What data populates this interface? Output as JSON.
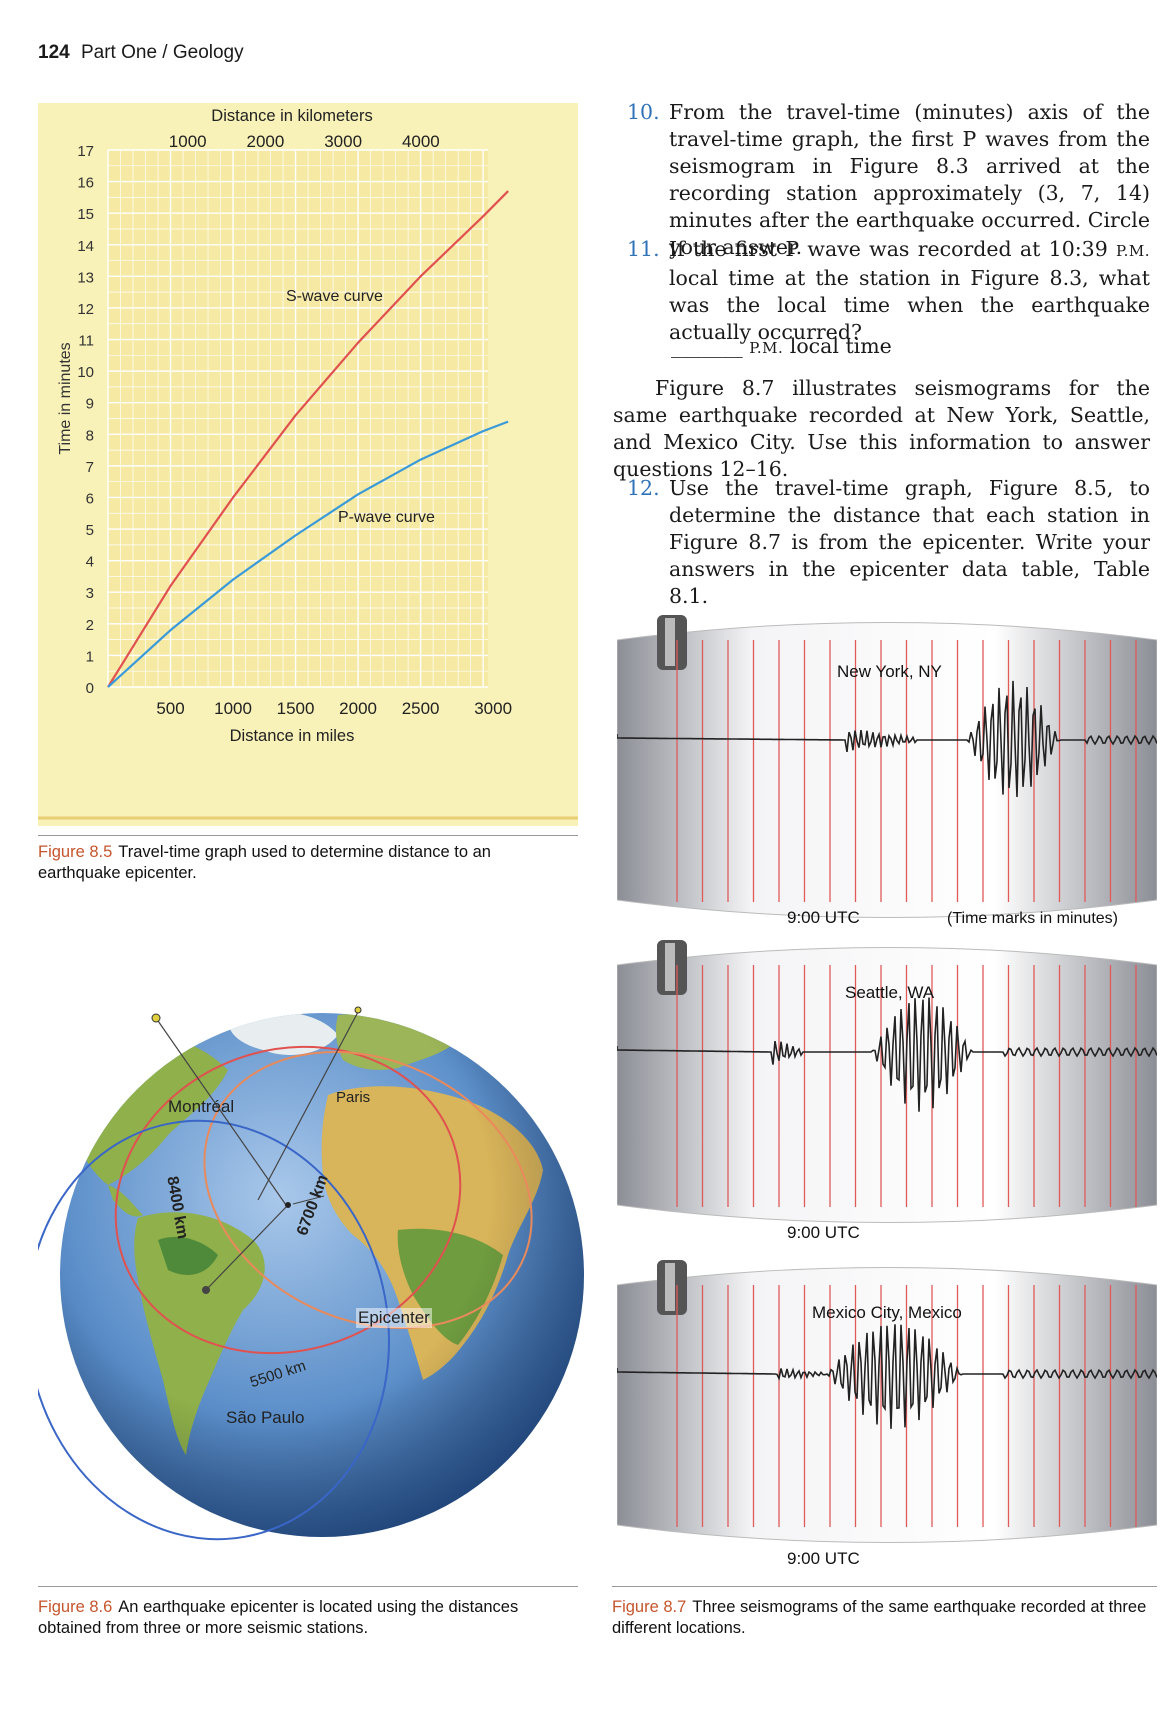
{
  "header": {
    "page_number": "124",
    "section": "Part One / Geology"
  },
  "fig85": {
    "caption_label": "Figure 8.5",
    "caption_text": "Travel-time graph used to determine distance to an earthquake epicenter.",
    "top_axis_label": "Distance in kilometers",
    "bottom_axis_label": "Distance in miles",
    "left_axis_label": "Time in minutes",
    "s_curve_label": "S-wave curve",
    "p_curve_label": "P-wave curve",
    "colors": {
      "background": "#f8f1b8",
      "grid": "#ffffff",
      "s_wave": "#e0514f",
      "p_wave": "#3a9ad9"
    }
  },
  "chart_data": {
    "type": "line",
    "title": "",
    "xlabel": "Distance in miles",
    "x2label": "Distance in kilometers",
    "ylabel": "Time in minutes",
    "xlim": [
      0,
      3200
    ],
    "ylim": [
      0,
      17
    ],
    "x_ticks": [
      "500",
      "1000",
      "1500",
      "2000",
      "2500",
      "3000"
    ],
    "x2_ticks": [
      "1000",
      "2000",
      "3000",
      "4000"
    ],
    "y_ticks": [
      "0",
      "1",
      "2",
      "3",
      "4",
      "5",
      "6",
      "7",
      "8",
      "9",
      "10",
      "11",
      "12",
      "13",
      "14",
      "15",
      "16",
      "17"
    ],
    "grid": true,
    "series": [
      {
        "name": "S-wave curve",
        "x": [
          0,
          500,
          1000,
          1500,
          2000,
          2500,
          3000,
          3200
        ],
        "y": [
          0,
          3.2,
          6.0,
          8.6,
          10.9,
          13.0,
          14.9,
          15.7
        ]
      },
      {
        "name": "P-wave curve",
        "x": [
          0,
          500,
          1000,
          1500,
          2000,
          2500,
          3000,
          3200
        ],
        "y": [
          0,
          1.8,
          3.4,
          4.8,
          6.1,
          7.2,
          8.1,
          8.4
        ]
      }
    ]
  },
  "fig86": {
    "caption_label": "Figure 8.6",
    "caption_text": "An earthquake epicenter is located using the distances obtained from three or more seismic stations.",
    "labels": {
      "montreal": "Montréal",
      "paris": "Paris",
      "sao_paulo": "São Paulo",
      "epicenter": "Epicenter",
      "d_montreal": "8400 km",
      "d_paris": "6700 km",
      "d_sao_paulo": "5500 km"
    },
    "colors": {
      "ocean": "#5b8ec9",
      "land": "#8fb04a",
      "desert": "#d8b45a",
      "circle_red": "#e0514f",
      "circle_blue": "#3a66c8",
      "circle_orange": "#e88a5c"
    }
  },
  "questions": {
    "q10_num": "10.",
    "q10_text": "From the travel-time (minutes) axis of the travel-time graph, the first P waves from the seismogram in Figure 8.3 arrived at the recording station approximately (3, 7, 14) minutes after the earthquake occurred. Circle your answer.",
    "q11_num": "11.",
    "q11_text_a": "If the first P wave was recorded at 10:39",
    "q11_pm": "P.M.",
    "q11_text_b": "local time at the station in Figure 8.3, what was the local time when the earthquake actually occurred?",
    "blank": "_______",
    "pm": "P.M.",
    "local_time": "local time",
    "intro": "Figure 8.7 illustrates seismograms for the same earthquake recorded at New York, Seattle, and Mexico City. Use this information to answer questions 12–16.",
    "q12_num": "12.",
    "q12_text": "Use the travel-time graph, Figure 8.5, to determine the distance that each station in Figure 8.7 is from the epicenter. Write your answers in the epicenter data table, Table 8.1."
  },
  "fig87": {
    "caption_label": "Figure 8.7",
    "caption_text": "Three seismograms of the same earthquake recorded at three different locations.",
    "panels": [
      {
        "station": "New York, NY",
        "time_label": "9:00 UTC",
        "note": "(Time marks in minutes)"
      },
      {
        "station": "Seattle, WA",
        "time_label": "9:00 UTC",
        "note": ""
      },
      {
        "station": "Mexico City, Mexico",
        "time_label": "9:00 UTC",
        "note": ""
      }
    ],
    "colors": {
      "drum_light": "#f4f4f6",
      "drum_dark": "#8c8e96",
      "time_marks": "#e05a5a",
      "trace": "#222222"
    }
  }
}
